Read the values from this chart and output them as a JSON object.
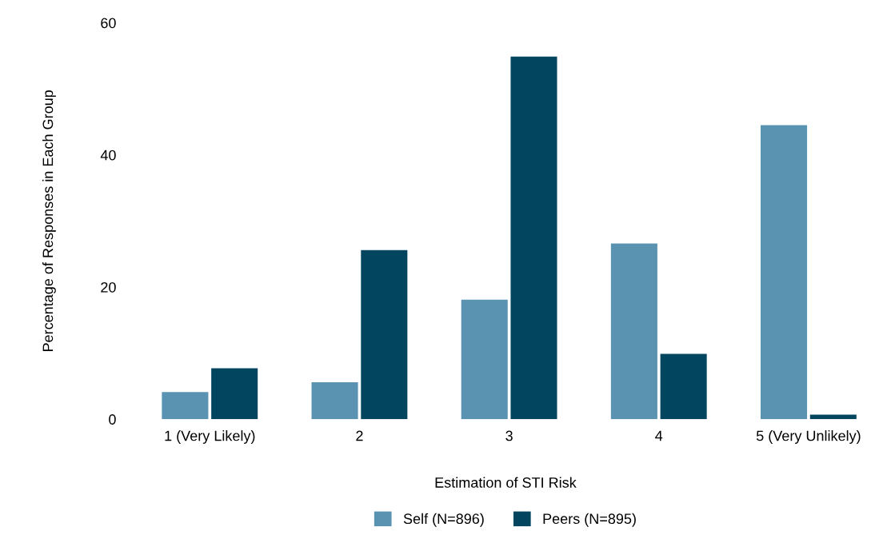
{
  "chart_data": {
    "type": "bar",
    "xlabel": "Estimation of STI Risk",
    "ylabel": "Percentage of Responses in Each Group",
    "categories": [
      "1 (Very Likely)",
      "2",
      "3",
      "4",
      "5 (Very Unlikely)"
    ],
    "series": [
      {
        "name": "Self (N=896)",
        "color": "#5a93b1",
        "values": [
          4.1,
          5.6,
          18.1,
          26.6,
          44.5
        ]
      },
      {
        "name": "Peers (N=895)",
        "color": "#02455f",
        "values": [
          7.7,
          25.6,
          54.9,
          9.9,
          0.7
        ]
      }
    ],
    "ylim": [
      0,
      60
    ],
    "yticks": [
      0,
      20,
      40,
      60
    ],
    "grid": false,
    "legend": "bottom"
  }
}
